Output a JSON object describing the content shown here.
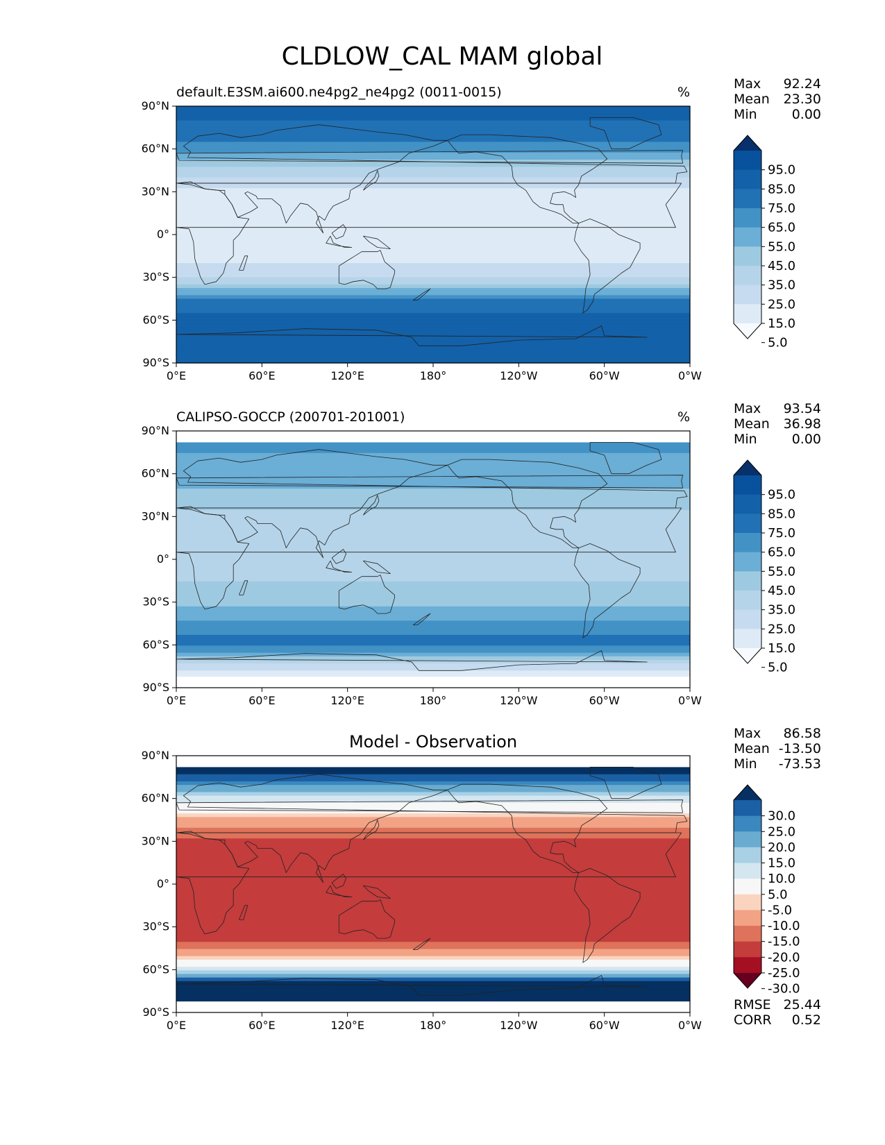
{
  "figure": {
    "title": "CLDLOW_CAL MAM global"
  },
  "colors": {
    "seq": [
      "#f7fbff",
      "#deebf7",
      "#c6dbef",
      "#b5d4e9",
      "#9ecae1",
      "#6baed6",
      "#4292c6",
      "#2171b5",
      "#1361a9",
      "#08519c",
      "#08306b"
    ],
    "div": [
      "#67001f",
      "#a50f22",
      "#c43c3c",
      "#de725b",
      "#f2a385",
      "#fbd4bf",
      "#f7f7f7",
      "#d4e6f0",
      "#a9d0e5",
      "#6aacd0",
      "#3a88bf",
      "#1b5fa4",
      "#053061"
    ]
  },
  "panels": [
    {
      "key": "model",
      "left_title": "default.E3SM.ai600.ne4pg2_ne4pg2 (0011-0015)",
      "center_title": "",
      "units": "%",
      "stats": [
        {
          "label": "Max",
          "value": "92.24"
        },
        {
          "label": "Mean",
          "value": "23.30"
        },
        {
          "label": "Min",
          "value": "0.00"
        }
      ],
      "colorbar_ticks": [
        "95.0",
        "85.0",
        "75.0",
        "65.0",
        "55.0",
        "45.0",
        "35.0",
        "25.0",
        "15.0",
        "5.0"
      ],
      "colorbar_scale": "seq",
      "extra_stats": []
    },
    {
      "key": "obs",
      "left_title": "CALIPSO-GOCCP (200701-201001)",
      "center_title": "",
      "units": "%",
      "stats": [
        {
          "label": "Max",
          "value": "93.54"
        },
        {
          "label": "Mean",
          "value": "36.98"
        },
        {
          "label": "Min",
          "value": "0.00"
        }
      ],
      "colorbar_ticks": [
        "95.0",
        "85.0",
        "75.0",
        "65.0",
        "55.0",
        "45.0",
        "35.0",
        "25.0",
        "15.0",
        "5.0"
      ],
      "colorbar_scale": "seq",
      "extra_stats": []
    },
    {
      "key": "diff",
      "left_title": "",
      "center_title": "Model - Observation",
      "units": "",
      "stats": [
        {
          "label": "Max",
          "value": "86.58"
        },
        {
          "label": "Mean",
          "value": "-13.50"
        },
        {
          "label": "Min",
          "value": "-73.53"
        }
      ],
      "colorbar_ticks": [
        "30.0",
        "25.0",
        "20.0",
        "15.0",
        "10.0",
        "5.0",
        "-5.0",
        "-10.0",
        "-15.0",
        "-20.0",
        "-25.0",
        "-30.0"
      ],
      "colorbar_scale": "div",
      "extra_stats": [
        {
          "label": "RMSE",
          "value": "25.44"
        },
        {
          "label": "CORR",
          "value": "0.52"
        }
      ]
    }
  ],
  "axes": {
    "lat_ticks": [
      "90°N",
      "60°N",
      "30°N",
      "0°",
      "30°S",
      "60°S",
      "90°S"
    ],
    "lon_ticks": [
      "0°E",
      "60°E",
      "120°E",
      "180°",
      "120°W",
      "60°W",
      "0°W"
    ]
  },
  "chart_data": [
    {
      "type": "heatmap",
      "title": "default.E3SM.ai600.ne4pg2_ne4pg2 (0011-0015)",
      "units": "%",
      "x_range": [
        0,
        360
      ],
      "y_range": [
        -90,
        90
      ],
      "colorbar_levels": [
        5,
        15,
        25,
        35,
        45,
        55,
        65,
        75,
        85,
        95
      ],
      "zonal_mean_profile": {
        "lat": [
          90,
          75,
          60,
          45,
          30,
          15,
          0,
          -15,
          -30,
          -45,
          -60,
          -75,
          -90
        ],
        "value": [
          80,
          72,
          62,
          30,
          10,
          8,
          10,
          12,
          22,
          65,
          82,
          82,
          75
        ]
      },
      "stats": {
        "max": 92.24,
        "mean": 23.3,
        "min": 0.0
      }
    },
    {
      "type": "heatmap",
      "title": "CALIPSO-GOCCP (200701-201001)",
      "units": "%",
      "x_range": [
        0,
        360
      ],
      "y_range": [
        -90,
        90
      ],
      "colorbar_levels": [
        5,
        15,
        25,
        35,
        45,
        55,
        65,
        75,
        85,
        95
      ],
      "zonal_mean_profile": {
        "lat": [
          82,
          75,
          60,
          45,
          30,
          15,
          0,
          -15,
          -30,
          -45,
          -60,
          -75,
          -82
        ],
        "value": [
          65,
          55,
          50,
          42,
          32,
          30,
          32,
          35,
          42,
          58,
          70,
          20,
          5
        ]
      },
      "stats": {
        "max": 93.54,
        "mean": 36.98,
        "min": 0.0
      }
    },
    {
      "type": "heatmap",
      "title": "Model - Observation",
      "units": "",
      "x_range": [
        0,
        360
      ],
      "y_range": [
        -90,
        90
      ],
      "colorbar_levels": [
        -30,
        -25,
        -20,
        -15,
        -10,
        -5,
        5,
        10,
        15,
        20,
        25,
        30
      ],
      "zonal_mean_profile": {
        "lat": [
          82,
          75,
          60,
          45,
          30,
          15,
          0,
          -15,
          -30,
          -45,
          -60,
          -75,
          -82
        ],
        "value": [
          35,
          28,
          8,
          -12,
          -22,
          -22,
          -22,
          -23,
          -25,
          -18,
          10,
          45,
          60
        ]
      },
      "stats": {
        "max": 86.58,
        "mean": -13.5,
        "min": -73.53,
        "rmse": 25.44,
        "corr": 0.52
      }
    }
  ]
}
